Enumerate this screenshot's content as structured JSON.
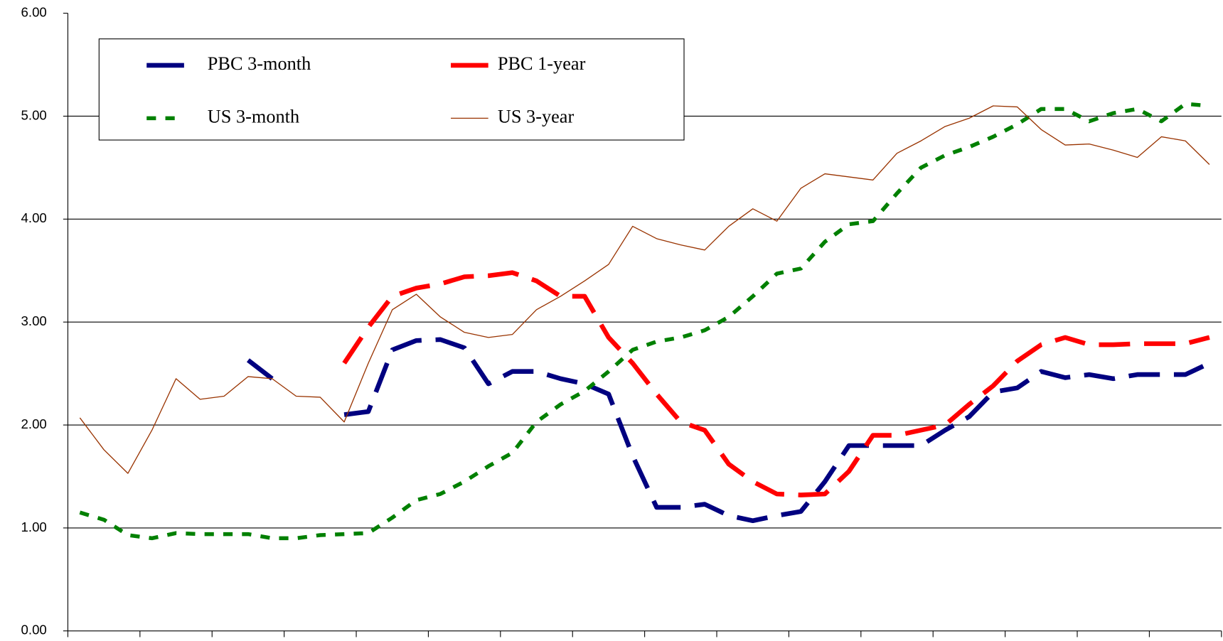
{
  "chart_data": {
    "type": "line",
    "categories": [
      null,
      null,
      null,
      null,
      null,
      null,
      null,
      null,
      null,
      null,
      null,
      null,
      null,
      null,
      null,
      null,
      null,
      null,
      null,
      null,
      null,
      null,
      null,
      null,
      null,
      null,
      null,
      null,
      null,
      null,
      null,
      null,
      null,
      null,
      null,
      null,
      null,
      null,
      null,
      null,
      null,
      null,
      null,
      null,
      null,
      null,
      null,
      null
    ],
    "ylim": [
      0,
      6
    ],
    "yticks": [
      {
        "value": 0,
        "label": "0.00"
      },
      {
        "value": 1,
        "label": "1.00"
      },
      {
        "value": 2,
        "label": "2.00"
      },
      {
        "value": 3,
        "label": "3.00"
      },
      {
        "value": 4,
        "label": "4.00"
      },
      {
        "value": 5,
        "label": "5.00"
      },
      {
        "value": 6,
        "label": "6.00"
      }
    ],
    "grid": true,
    "legend": "top-left",
    "series": [
      {
        "name": "PBC 3-month",
        "color": "#000080",
        "style": "long-dash",
        "values": [
          null,
          null,
          null,
          null,
          null,
          null,
          null,
          2.63,
          2.45,
          null,
          null,
          2.1,
          2.13,
          2.73,
          2.82,
          2.83,
          2.75,
          2.4,
          2.52,
          2.52,
          2.45,
          2.4,
          2.3,
          1.7,
          1.2,
          1.2,
          1.23,
          1.12,
          1.07,
          1.12,
          1.16,
          1.45,
          1.8,
          1.8,
          1.8,
          1.8,
          1.95,
          2.08,
          2.32,
          2.36,
          2.52,
          2.46,
          2.49,
          2.45,
          2.49,
          2.49,
          2.49,
          2.6
        ]
      },
      {
        "name": "PBC 1-year",
        "color": "#ff0000",
        "style": "long-dash",
        "values": [
          null,
          null,
          null,
          null,
          null,
          null,
          null,
          null,
          null,
          null,
          null,
          2.6,
          2.95,
          3.25,
          3.33,
          3.37,
          3.44,
          3.45,
          3.48,
          3.4,
          3.25,
          3.25,
          2.85,
          2.6,
          2.3,
          2.03,
          1.95,
          1.62,
          1.45,
          1.33,
          1.32,
          1.33,
          1.55,
          1.9,
          1.9,
          1.95,
          2.0,
          2.2,
          2.38,
          2.62,
          2.78,
          2.85,
          2.78,
          2.78,
          2.79,
          2.79,
          2.79,
          2.85
        ]
      },
      {
        "name": "US 3-month",
        "color": "#008000",
        "style": "short-dash",
        "values": [
          1.15,
          1.08,
          0.93,
          0.9,
          0.95,
          0.94,
          0.94,
          0.94,
          0.9,
          0.9,
          0.93,
          0.94,
          0.95,
          1.1,
          1.27,
          1.33,
          1.45,
          1.6,
          1.73,
          2.03,
          2.2,
          2.33,
          2.52,
          2.73,
          2.81,
          2.85,
          2.92,
          3.05,
          3.25,
          3.47,
          3.52,
          3.78,
          3.95,
          3.98,
          4.25,
          4.5,
          4.62,
          4.7,
          4.8,
          4.92,
          5.07,
          5.07,
          4.95,
          5.03,
          5.07,
          4.95,
          5.12,
          5.1
        ]
      },
      {
        "name": "US 3-year",
        "color": "#993300",
        "style": "solid",
        "values": [
          2.07,
          1.76,
          1.53,
          1.95,
          2.45,
          2.25,
          2.28,
          2.47,
          2.45,
          2.28,
          2.27,
          2.03,
          2.6,
          3.12,
          3.27,
          3.05,
          2.9,
          2.85,
          2.88,
          3.12,
          3.25,
          3.4,
          3.56,
          3.93,
          3.81,
          3.75,
          3.7,
          3.93,
          4.1,
          3.98,
          4.3,
          4.44,
          4.41,
          4.38,
          4.64,
          4.76,
          4.9,
          4.98,
          5.1,
          5.09,
          4.87,
          4.72,
          4.73,
          4.67,
          4.6,
          4.8,
          4.76,
          4.53
        ]
      }
    ]
  }
}
